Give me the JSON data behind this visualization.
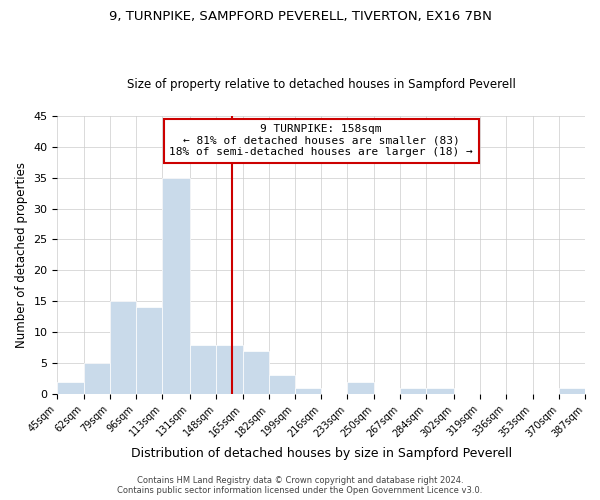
{
  "title": "9, TURNPIKE, SAMPFORD PEVERELL, TIVERTON, EX16 7BN",
  "subtitle": "Size of property relative to detached houses in Sampford Peverell",
  "xlabel": "Distribution of detached houses by size in Sampford Peverell",
  "ylabel": "Number of detached properties",
  "bin_edges": [
    45,
    62,
    79,
    96,
    113,
    131,
    148,
    165,
    182,
    199,
    216,
    233,
    250,
    267,
    284,
    302,
    319,
    336,
    353,
    370,
    387
  ],
  "bin_labels": [
    "45sqm",
    "62sqm",
    "79sqm",
    "96sqm",
    "113sqm",
    "131sqm",
    "148sqm",
    "165sqm",
    "182sqm",
    "199sqm",
    "216sqm",
    "233sqm",
    "250sqm",
    "267sqm",
    "284sqm",
    "302sqm",
    "319sqm",
    "336sqm",
    "353sqm",
    "370sqm",
    "387sqm"
  ],
  "counts": [
    2,
    5,
    15,
    14,
    35,
    8,
    8,
    7,
    3,
    1,
    0,
    2,
    0,
    1,
    1,
    0,
    0,
    0,
    0,
    1
  ],
  "bar_color": "#c9daea",
  "reference_line_x": 158,
  "reference_line_color": "#cc0000",
  "annotation_line1": "9 TURNPIKE: 158sqm",
  "annotation_line2": "← 81% of detached houses are smaller (83)",
  "annotation_line3": "18% of semi-detached houses are larger (18) →",
  "annotation_box_color": "#ffffff",
  "annotation_box_edge_color": "#cc0000",
  "ylim": [
    0,
    45
  ],
  "yticks": [
    0,
    5,
    10,
    15,
    20,
    25,
    30,
    35,
    40,
    45
  ],
  "footer_line1": "Contains HM Land Registry data © Crown copyright and database right 2024.",
  "footer_line2": "Contains public sector information licensed under the Open Government Licence v3.0.",
  "background_color": "#ffffff",
  "grid_color": "#cccccc",
  "title_fontsize": 9.5,
  "subtitle_fontsize": 8.5
}
